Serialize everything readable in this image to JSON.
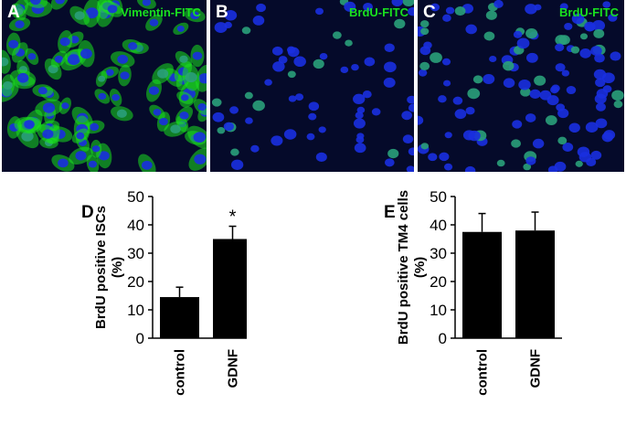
{
  "panels": [
    {
      "letter": "A",
      "label": "Vimentin-FITC"
    },
    {
      "letter": "B",
      "label": "BrdU-FITC"
    },
    {
      "letter": "C",
      "label": "BrdU-FITC"
    }
  ],
  "chart_data": [
    {
      "panel": "D",
      "type": "bar",
      "categories": [
        "control",
        "GDNF"
      ],
      "values": [
        14.5,
        35
      ],
      "errors": [
        3.5,
        4.5
      ],
      "ylabel": "BrdU positive ISCs (%)",
      "ylim": [
        0,
        50
      ],
      "yticks": [
        0,
        10,
        20,
        30,
        40,
        50
      ],
      "annotations": [
        "*"
      ],
      "grid": false
    },
    {
      "panel": "E",
      "type": "bar",
      "categories": [
        "control",
        "GDNF"
      ],
      "values": [
        37.5,
        38
      ],
      "errors": [
        6.5,
        6.5
      ],
      "ylabel": "BrdU positive TM4 cells (%)",
      "ylim": [
        0,
        50
      ],
      "yticks": [
        0,
        10,
        20,
        30,
        40,
        50
      ],
      "grid": false
    }
  ],
  "colors": {
    "bar": "#000000",
    "stain": "#19e01f",
    "nuclei": "#1a2fe0",
    "background": "#050a2a"
  }
}
